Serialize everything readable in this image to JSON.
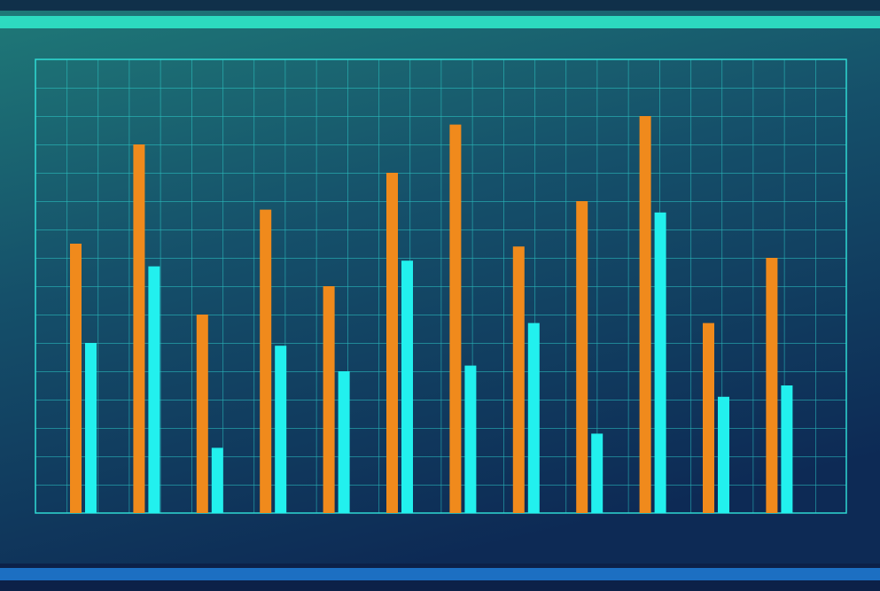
{
  "chart_data": {
    "type": "bar",
    "categories": [
      null,
      null,
      null,
      null,
      null,
      null,
      null,
      null,
      null,
      null,
      null,
      null
    ],
    "series": [
      {
        "color": "#f08a1c",
        "values": [
          9.5,
          13,
          7,
          10.7,
          8,
          12,
          13.7,
          9.4,
          11,
          14,
          6.7,
          9
        ]
      },
      {
        "color": "#22f0ee",
        "values": [
          6,
          8.7,
          2.3,
          5.9,
          5,
          8.9,
          5.2,
          6.7,
          2.8,
          10.6,
          4.1,
          4.5
        ]
      }
    ],
    "ylim": [
      0,
      16
    ]
  }
}
